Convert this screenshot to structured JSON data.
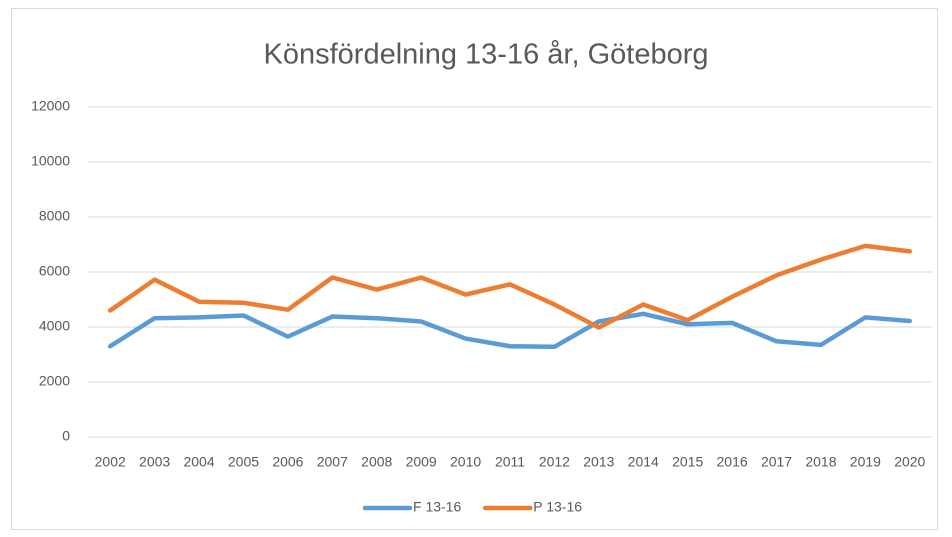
{
  "chart_data": {
    "type": "line",
    "title": "Könsfördelning 13-16 år, Göteborg",
    "categories": [
      "2002",
      "2003",
      "2004",
      "2005",
      "2006",
      "2007",
      "2008",
      "2009",
      "2010",
      "2011",
      "2012",
      "2013",
      "2014",
      "2015",
      "2016",
      "2017",
      "2018",
      "2019",
      "2020"
    ],
    "series": [
      {
        "name": "F 13-16",
        "color": "#5b9bd5",
        "values": [
          3300,
          4320,
          4350,
          4420,
          3650,
          4380,
          4320,
          4200,
          3580,
          3300,
          3280,
          4200,
          4480,
          4100,
          4150,
          3480,
          3350,
          4350,
          4220
        ]
      },
      {
        "name": "P 13-16",
        "color": "#ed7d31",
        "values": [
          4600,
          5720,
          4920,
          4880,
          4630,
          5800,
          5360,
          5800,
          5180,
          5550,
          4820,
          3980,
          4820,
          4250,
          5100,
          5880,
          6450,
          6950,
          6750
        ]
      }
    ],
    "ylim": [
      0,
      12000
    ],
    "yticks": [
      0,
      2000,
      4000,
      6000,
      8000,
      10000,
      12000
    ],
    "grid": true,
    "legend": "bottom"
  }
}
